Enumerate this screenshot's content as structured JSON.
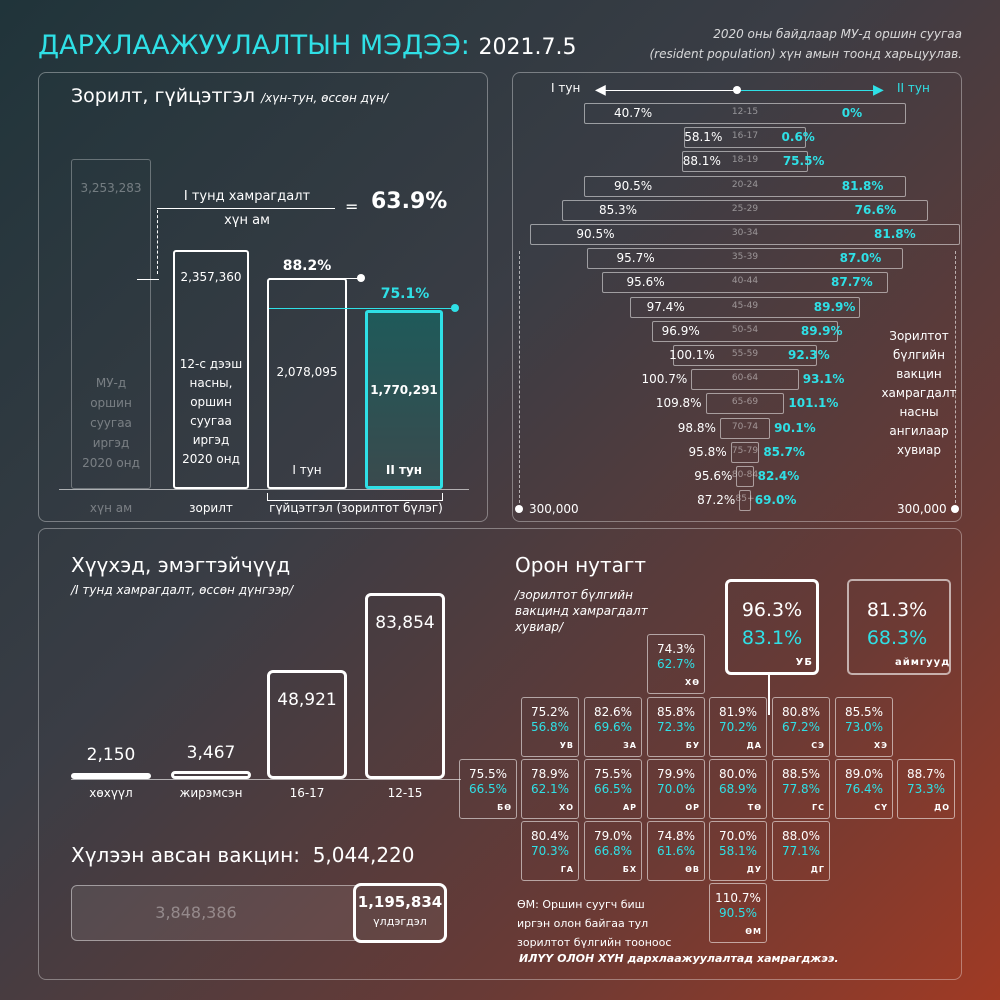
{
  "header": {
    "title": "ДАРХЛААЖУУЛАЛТЫН МЭДЭЭ:",
    "date": "2021.7.5",
    "note1": "2020 оны байдлаар МУ-д оршин суугаа",
    "note2": "(resident population) хүн амын тоонд харьцуулав."
  },
  "goal": {
    "title": "Зорилт, гүйцэтгэл",
    "subtitle": "/хүн-тун, өссөн дүн/",
    "formula_num": "I тунд хамрагдалт",
    "formula_den": "хүн ам",
    "equals": "=",
    "ratio": "63.9%",
    "pop_value": "3,253,283",
    "pop_label": [
      "МУ-д",
      "оршин",
      "суугаа",
      "иргэд",
      "2020 онд"
    ],
    "target_value": "2,357,360",
    "target_label": [
      "12-с дээш",
      "насны,",
      "оршин",
      "суугаа",
      "иргэд",
      "2020 онд"
    ],
    "dose1_pct": "88.2%",
    "dose1_value": "2,078,095",
    "dose1_label": "I тун",
    "dose2_pct": "75.1%",
    "dose2_value": "1,770,291",
    "dose2_label": "II тун",
    "x_pop": "хүн ам",
    "x_target": "зорилт",
    "x_perf": "гүйцэтгэл (зорилтот бүлэг)"
  },
  "pyramid": {
    "left_label": "I тун",
    "right_label": "II тун",
    "left_scale": "300,000",
    "right_scale": "300,000",
    "side_note": [
      "Зорилтот",
      "бүлгийн",
      "вакцин",
      "хамрагдалт",
      "насны",
      "ангилаар",
      "хувиар"
    ]
  },
  "children": {
    "title": "Хүүхэд, эмэгтэйчүүд",
    "subtitle": "/I тунд хамрагдалт, өссөн дүнгээр/"
  },
  "vaccine": {
    "title": "Хүлээн авсан вакцин:",
    "total": "5,044,220",
    "used": "3,848,386",
    "remain": "1,195,834",
    "remain_label": "үлдэгдэл"
  },
  "regions": {
    "title": "Орон нутагт",
    "subtitle": [
      "/зорилтот бүлгийн",
      "вакцинд хамрагдалт",
      "хувиар/"
    ],
    "ub": {
      "d1": "96.3%",
      "d2": "83.1%",
      "code": "УБ"
    },
    "aimag": {
      "d1": "81.3%",
      "d2": "68.3%",
      "code": "аймгууд"
    },
    "note": [
      "ӨМ: Оршин суугч биш",
      "иргэн олон байгаа тул",
      "зорилтот бүлгийн тооноос"
    ],
    "note_bold": "ИЛҮҮ ОЛОН ХҮН дархлаажуулалтад хамрагджээ."
  },
  "chart_data": [
    {
      "type": "bar",
      "title": "Зорилт, гүйцэтгэл",
      "categories": [
        "хүн ам",
        "зорилт",
        "I тун",
        "II тун"
      ],
      "values": [
        3253283,
        2357360,
        2078095,
        1770291
      ],
      "percent_labels": [
        "",
        "",
        "88.2%",
        "75.1%"
      ]
    },
    {
      "type": "bar",
      "title": "Насны ангилаар",
      "orientation": "horizontal-pyramid",
      "categories": [
        "12-15",
        "16-17",
        "18-19",
        "20-24",
        "25-29",
        "30-34",
        "35-39",
        "40-44",
        "45-49",
        "50-54",
        "55-59",
        "60-64",
        "65-69",
        "70-74",
        "75-79",
        "80-84",
        "85+"
      ],
      "series": [
        {
          "name": "I тун",
          "values": [
            "40.7%",
            "58.1%",
            "88.1%",
            "90.5%",
            "85.3%",
            "90.5%",
            "95.7%",
            "95.6%",
            "97.4%",
            "96.9%",
            "100.1%",
            "100.7%",
            "109.8%",
            "98.8%",
            "95.8%",
            "95.6%",
            "87.2%"
          ]
        },
        {
          "name": "II тун",
          "values": [
            "0%",
            "0.6%",
            "75.5%",
            "81.8%",
            "76.6%",
            "81.8%",
            "87.0%",
            "87.7%",
            "89.9%",
            "89.9%",
            "92.3%",
            "93.1%",
            "101.1%",
            "90.1%",
            "85.7%",
            "82.4%",
            "69.0%"
          ]
        }
      ],
      "population": [
        225000,
        85000,
        88000,
        225000,
        255000,
        300000,
        220000,
        200000,
        160000,
        130000,
        100000,
        75000,
        55000,
        35000,
        20000,
        12000,
        8000
      ]
    },
    {
      "type": "bar",
      "title": "Хүүхэд, эмэгтэйчүүд",
      "categories": [
        "хөхүүл",
        "жирэмсэн",
        "16-17",
        "12-15"
      ],
      "values": [
        2150,
        3467,
        48921,
        83854
      ]
    }
  ],
  "provinces": [
    {
      "code": "ХӨ",
      "d1": "74.3%",
      "d2": "62.7%"
    },
    {
      "code": "УВ",
      "d1": "75.2%",
      "d2": "56.8%"
    },
    {
      "code": "ЗА",
      "d1": "82.6%",
      "d2": "69.6%"
    },
    {
      "code": "БУ",
      "d1": "85.8%",
      "d2": "72.3%"
    },
    {
      "code": "ДА",
      "d1": "81.9%",
      "d2": "70.2%"
    },
    {
      "code": "СЭ",
      "d1": "80.8%",
      "d2": "67.2%"
    },
    {
      "code": "ХЭ",
      "d1": "85.5%",
      "d2": "73.0%"
    },
    {
      "code": "БӨ",
      "d1": "75.5%",
      "d2": "66.5%"
    },
    {
      "code": "ХО",
      "d1": "78.9%",
      "d2": "62.1%"
    },
    {
      "code": "АР",
      "d1": "75.5%",
      "d2": "66.5%"
    },
    {
      "code": "ОР",
      "d1": "79.9%",
      "d2": "70.0%"
    },
    {
      "code": "ТӨ",
      "d1": "80.0%",
      "d2": "68.9%"
    },
    {
      "code": "ГС",
      "d1": "88.5%",
      "d2": "77.8%"
    },
    {
      "code": "СҮ",
      "d1": "89.0%",
      "d2": "76.4%"
    },
    {
      "code": "ДО",
      "d1": "88.7%",
      "d2": "73.3%"
    },
    {
      "code": "ГА",
      "d1": "80.4%",
      "d2": "70.3%"
    },
    {
      "code": "БХ",
      "d1": "79.0%",
      "d2": "66.8%"
    },
    {
      "code": "ӨВ",
      "d1": "74.8%",
      "d2": "61.6%"
    },
    {
      "code": "ДУ",
      "d1": "70.0%",
      "d2": "58.1%"
    },
    {
      "code": "ДГ",
      "d1": "88.0%",
      "d2": "77.1%"
    },
    {
      "code": "ӨМ",
      "d1": "110.7%",
      "d2": "90.5%"
    }
  ]
}
